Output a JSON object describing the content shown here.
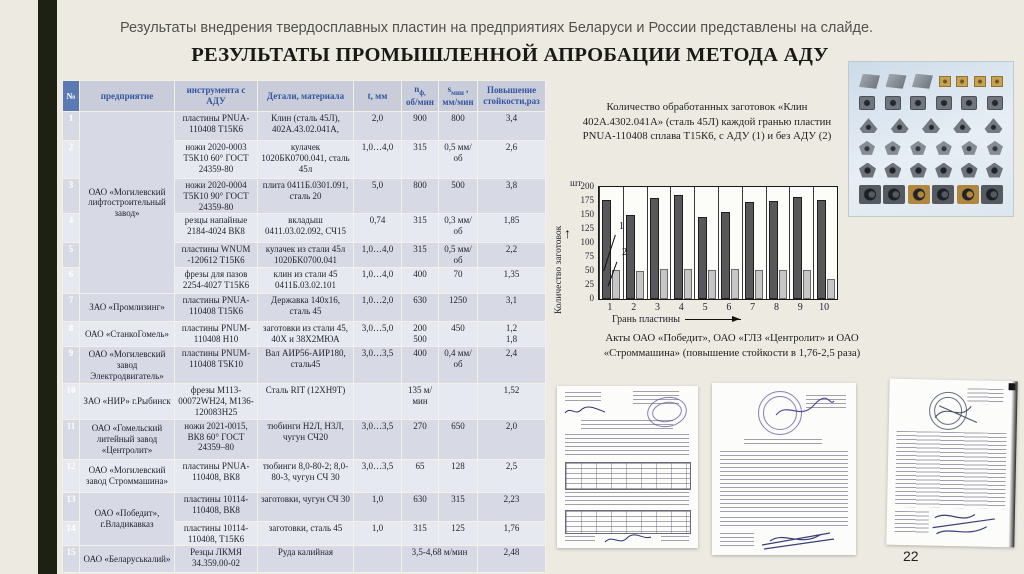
{
  "slide": {
    "intro_text": "Результаты внедрения твердосплавных пластин на предприятиях Беларуси и России представлены на слайде.",
    "title": "РЕЗУЛЬТАТЫ ПРОМЫШЛЕННОЙ АПРОБАЦИИ МЕТОДА АДУ",
    "page_number": "22"
  },
  "colors": {
    "background": "#edeae2",
    "sidebar_dark": "#1d2113",
    "accent_blue": "#5b79b5",
    "header_text_blue": "#35549e",
    "bar_dark": "#58585a",
    "bar_light": "#c6c6c6",
    "stamp_purple": "#6c5caa"
  },
  "table": {
    "headers": {
      "num": "№",
      "company": "предприятие",
      "tool": "инструмента с АДУ",
      "detail": "Детали, материала",
      "t": "t, мм",
      "n_main": "n",
      "n_sub": "ф,",
      "n_line2": "об/мин",
      "s_main": "s",
      "s_sub": "мин",
      "s_comma": " ,",
      "s_line2": "мм/мин",
      "gain": "Повышение стойкости,раз"
    },
    "rows": [
      {
        "num": "1",
        "company": "ОАО «Могилевский лифтостроительный завод»",
        "span": 6,
        "tool": "пластины PNUA-110408  Т15К6",
        "detail": "Клин (сталь 45Л), 402А.43.02.041А,",
        "t": "2,0",
        "n": "900",
        "s": "800",
        "gain": "3,4"
      },
      {
        "num": "2",
        "tool": "ножи 2020-0003 Т5К10 60° ГОСТ 24359-80",
        "detail": "кулачек 1020БК0700.041, сталь 45л",
        "t": "1,0…4,0",
        "n": "315",
        "s": "0,5 мм/об",
        "gain": "2,6"
      },
      {
        "num": "3",
        "tool": "ножи 2020-0004 Т5К10 90° ГОСТ 24359-80",
        "detail": "плита 0411Б.0301.091,  сталь 20",
        "t": "5,0",
        "n": "800",
        "s": "500",
        "gain": "3,8"
      },
      {
        "num": "4",
        "tool": "резцы напайные 2184-4024  ВК8",
        "detail": "вкладыш 0411.03.02.092,  СЧ15",
        "t": "0,74",
        "n": "315",
        "s": "0,3 мм/об",
        "gain": "1,85"
      },
      {
        "num": "5",
        "tool": "пластины WNUM -120612  Т15К6",
        "detail": "кулачек из стали 45л 1020БК0700.041",
        "t": "1,0…4,0",
        "n": "315",
        "s": "0,5 мм/об",
        "gain": "2,2"
      },
      {
        "num": "6",
        "tool": "фрезы для пазов 2254-4027  Т15К6",
        "detail": "клин из стали 45 0411Б.03.02.101",
        "t": "1,0…4,0",
        "n": "400",
        "s": "70",
        "gain": "1,35"
      },
      {
        "num": "7",
        "company": "ЗАО «Промлизинг»",
        "span": 1,
        "tool": "пластины PNUA-110408  Т15К6",
        "detail": "Державка 140х16, сталь 45",
        "t": "1,0…2,0",
        "n": "630",
        "s": "1250",
        "gain": "3,1"
      },
      {
        "num": "8",
        "company": "ОАО «СтанкоГомель»",
        "span": 1,
        "tool": "пластины PNUM-110408  Н10",
        "detail": "заготовки из стали 45, 40Х и 38Х2МЮА",
        "t": "3,0…5,0",
        "n": "200\n500",
        "s": "450",
        "gain": "1,2\n1,8"
      },
      {
        "num": "9",
        "company": "ОАО «Могилевский завод Электродвигатель»",
        "span": 1,
        "tool": "пластины PNUM-110408  Т5К10",
        "detail": "Вал АИР56-АИР180, сталь45",
        "t": "3,0…3,5",
        "n": "400",
        "s": "0,4 мм/об",
        "gain": "2,4"
      },
      {
        "num": "10",
        "company": "ЗАО «НИР» г.Рыбинск",
        "span": 1,
        "tool": "фрезы М113-00072WH24, М136-120083Н25",
        "detail": "Сталь RIT (12ХН9Т)",
        "t": "",
        "n": "135 м/мин",
        "s": "",
        "gain": "1,52"
      },
      {
        "num": "11",
        "company": "ОАО «Гомельский литейный завод «Центролит»",
        "span": 1,
        "tool": "ножи 2021-0015, ВК8 60° ГОСТ 24359–80",
        "detail": "тюбинги Н2Л, Н3Л, чугун СЧ20",
        "t": "3,0…3,5",
        "n": "270",
        "s": "650",
        "gain": "2,0"
      },
      {
        "num": "12",
        "company": "ОАО «Могилевский завод Строммашина»",
        "span": 1,
        "tool": "пластины PNUA-110408, ВК8",
        "detail": "тюбинги 8,0-80-2; 8,0-80-3, чугун СЧ 30",
        "t": "3,0…3,5",
        "n": "65",
        "s": "128",
        "gain": "2,5"
      },
      {
        "num": "13",
        "company": "ОАО «Победит», г.Владикавказ",
        "span": 2,
        "tool": "пластины 10114-110408, ВК8",
        "detail": "заготовки, чугун СЧ 30",
        "t": "1,0",
        "n": "630",
        "s": "315",
        "gain": "2,23"
      },
      {
        "num": "14",
        "tool": "пластины 10114-110408, Т15К6",
        "detail": "заготовки, сталь 45",
        "t": "1,0",
        "n": "315",
        "s": "125",
        "gain": "1,76"
      },
      {
        "num": "15",
        "company": "ОАО «Беларуськалий»",
        "span": 1,
        "tool": "Резцы ЛКМЯ 34.359.00-02",
        "detail": "Руда калийная",
        "t": "",
        "ns": "3,5-4,68 м/мин",
        "gain": "2,48"
      }
    ]
  },
  "chart": {
    "caption": "Количество обработанных заготовок «Клин 402А.4302.041А» (сталь 45Л) каждой гранью пластин PNUA-110408 сплава Т15К6, с АДУ (1) и без АДУ (2)",
    "callout1": "1",
    "callout2": "2"
  },
  "chart_data": {
    "type": "bar",
    "title": "Количество обработанных заготовок каждой гранью пластин, с АДУ (1) и без АДУ (2)",
    "categories": [
      "1",
      "2",
      "3",
      "4",
      "5",
      "6",
      "7",
      "8",
      "9",
      "10"
    ],
    "series": [
      {
        "name": "1 (с АДУ)",
        "color": "#58585a",
        "values": [
          177,
          150,
          181,
          186,
          146,
          156,
          173,
          175,
          183,
          177
        ]
      },
      {
        "name": "2 (без АДУ)",
        "color": "#c6c6c6",
        "values": [
          52,
          50,
          54,
          53,
          51,
          53,
          51,
          52,
          51,
          35
        ]
      }
    ],
    "xlabel": "Грань пластины",
    "ylabel": "Количество заготовок",
    "y_unit": "шт",
    "ylim": [
      0,
      200
    ],
    "yticks": [
      0,
      25,
      50,
      75,
      100,
      125,
      150,
      175,
      200
    ],
    "grid": "vertical",
    "legend_position": "in-plot callouts"
  },
  "acts_text": "Акты ОАО «Победит», ОАО «ГЛЗ «Центролит» и ОАО «Строммашина» (повышение стойкости в 1,76-2,5 раза)",
  "photo_panel": {
    "description": "photo of carbide inserts",
    "rows": [
      [
        {
          "s": "rhomb"
        },
        {
          "s": "rhomb"
        },
        {
          "s": "rhomb"
        },
        {
          "s": "gsq"
        },
        {
          "s": "gsq"
        },
        {
          "s": "gsq"
        },
        {
          "s": "gsq"
        }
      ],
      [
        {
          "s": "sqh"
        },
        {
          "s": "sqh"
        },
        {
          "s": "sqh"
        },
        {
          "s": "sqh"
        },
        {
          "s": "sqh"
        },
        {
          "s": "sqh"
        }
      ],
      [
        {
          "s": "tri"
        },
        {
          "s": "tri"
        },
        {
          "s": "tri"
        },
        {
          "s": "tri"
        },
        {
          "s": "tri"
        }
      ],
      [
        {
          "s": "pent"
        },
        {
          "s": "pent"
        },
        {
          "s": "pent"
        },
        {
          "s": "pent"
        },
        {
          "s": "pent"
        },
        {
          "s": "pent"
        }
      ],
      [
        {
          "s": "penth"
        },
        {
          "s": "penth"
        },
        {
          "s": "penth"
        },
        {
          "s": "penth"
        },
        {
          "s": "penth"
        },
        {
          "s": "penth"
        }
      ],
      [
        {
          "s": "bsq"
        },
        {
          "s": "bsq"
        },
        {
          "s": "bsq",
          "c": "gold"
        },
        {
          "s": "bsq"
        },
        {
          "s": "bsq",
          "c": "gold"
        },
        {
          "s": "bsq"
        }
      ]
    ]
  }
}
